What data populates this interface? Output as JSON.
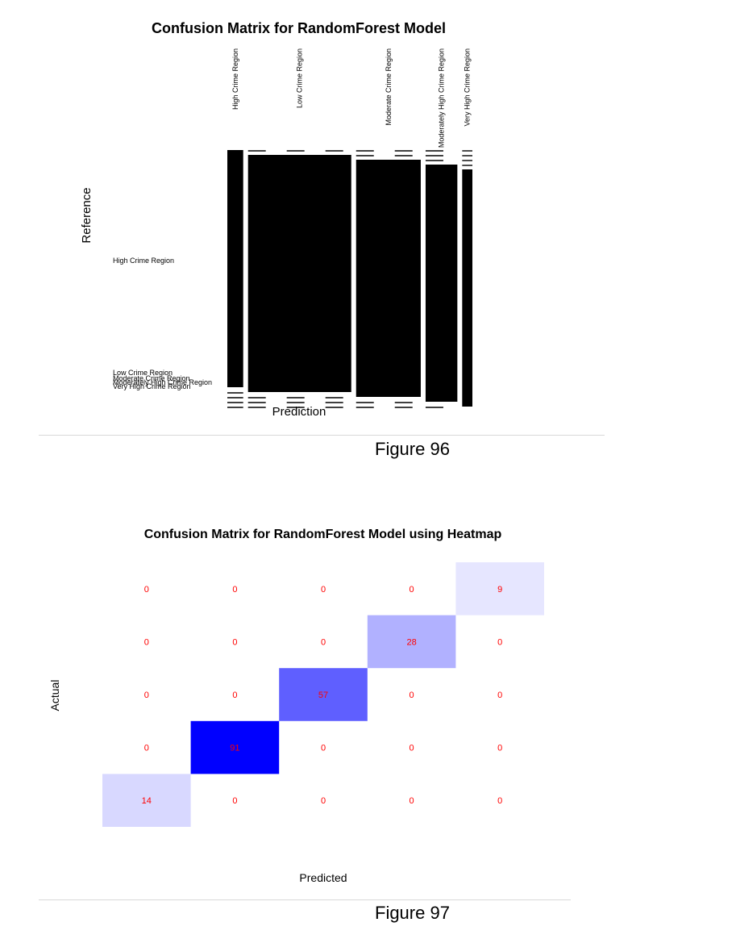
{
  "chart_data": [
    {
      "type": "mosaic",
      "title": "Confusion Matrix for RandomForest Model",
      "xlabel": "Prediction",
      "ylabel": "Reference",
      "categories": [
        "High Crime Region",
        "Low Crime Region",
        "Moderate Crime Region",
        "Moderately High Crime Region",
        "Very High Crime Region"
      ],
      "matrix": [
        [
          14,
          0,
          0,
          0,
          0
        ],
        [
          0,
          91,
          0,
          0,
          0
        ],
        [
          0,
          0,
          57,
          0,
          0
        ],
        [
          0,
          0,
          0,
          28,
          0
        ],
        [
          0,
          0,
          0,
          0,
          9
        ]
      ],
      "caption": "Figure 96"
    },
    {
      "type": "heatmap",
      "title": "Confusion Matrix for RandomForest Model using Heatmap",
      "xlabel": "Predicted",
      "ylabel": "Actual",
      "rows": [
        [
          0,
          0,
          0,
          0,
          9
        ],
        [
          0,
          0,
          0,
          28,
          0
        ],
        [
          0,
          0,
          57,
          0,
          0
        ],
        [
          0,
          91,
          0,
          0,
          0
        ],
        [
          14,
          0,
          0,
          0,
          0
        ]
      ],
      "color_low": "#ffffff",
      "color_high": "#0000ff",
      "label_color": "#ff0000",
      "caption": "Figure 97"
    }
  ]
}
